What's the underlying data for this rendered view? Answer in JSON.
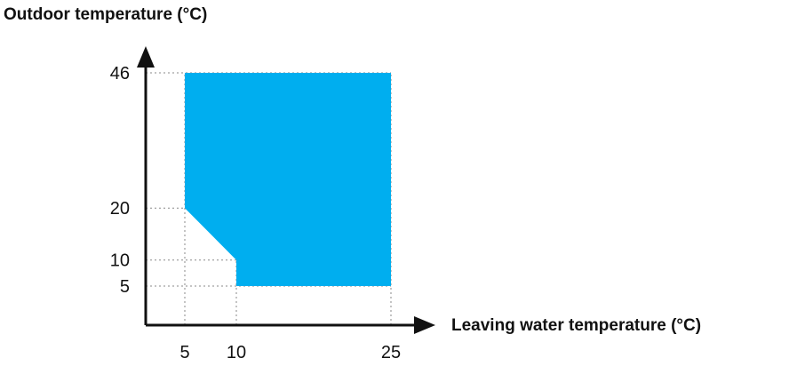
{
  "chart_data": {
    "type": "area",
    "xlabel": "Leaving water temperature (°C)",
    "ylabel": "Outdoor temperature (°C)",
    "x_ticks": [
      5,
      10,
      25
    ],
    "y_ticks": [
      5,
      10,
      20,
      46
    ],
    "xlim": [
      0,
      28
    ],
    "ylim": [
      -4,
      51
    ],
    "region": {
      "name": "",
      "color": "#00aeef",
      "polygon": [
        [
          5,
          46
        ],
        [
          25,
          46
        ],
        [
          25,
          5
        ],
        [
          10,
          5
        ],
        [
          10,
          10
        ],
        [
          5,
          20
        ]
      ]
    },
    "guide_color": "#888888",
    "grid": "dotted guide lines at tick values",
    "legend": "none"
  }
}
